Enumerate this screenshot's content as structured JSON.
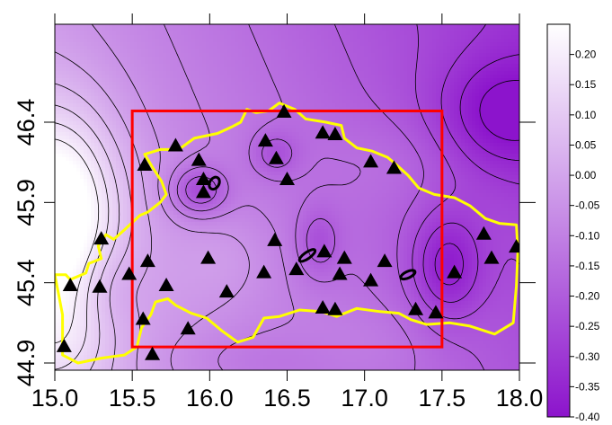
{
  "chart_data": {
    "type": "heatmap",
    "title": "",
    "xlabel": "",
    "ylabel": "",
    "xlim": [
      15.0,
      18.0
    ],
    "ylim": [
      44.9,
      46.55
    ],
    "x_ticks": [
      "15.0",
      "15.5",
      "16.0",
      "16.5",
      "17.0",
      "17.5",
      "18.0"
    ],
    "y_ticks": [
      "44.9",
      "45.4",
      "45.9",
      "46.4"
    ],
    "y_tick_values": [
      44.9,
      45.4,
      45.9,
      46.4
    ],
    "x_tick_values": [
      15.0,
      15.5,
      16.0,
      16.5,
      17.0,
      17.5,
      18.0
    ],
    "grid": false,
    "colorbar": {
      "labels": [
        "0.20",
        "0.15",
        "0.10",
        "0.05",
        "0.00",
        "-0.05",
        "-0.10",
        "-0.15",
        "-0.20",
        "-0.25",
        "-0.30",
        "-0.35",
        "-0.40"
      ],
      "values": [
        0.2,
        0.15,
        0.1,
        0.05,
        0.0,
        -0.05,
        -0.1,
        -0.15,
        -0.2,
        -0.25,
        -0.3,
        -0.35,
        -0.4
      ],
      "range": [
        -0.4,
        0.25
      ],
      "low_color": "#8c14cc",
      "high_color": "#ffffff",
      "placement": "right"
    },
    "study_area_rectangle": {
      "lon_min": 15.5,
      "lon_max": 17.5,
      "lat_min": 45.0,
      "lat_max": 46.47,
      "color": "#ff0000"
    },
    "border_color": "#ffff00",
    "contour_color": "#000000",
    "stations": [
      [
        16.48,
        46.47
      ],
      [
        15.78,
        46.26
      ],
      [
        16.36,
        46.29
      ],
      [
        16.73,
        46.34
      ],
      [
        16.81,
        46.33
      ],
      [
        15.58,
        46.14
      ],
      [
        15.93,
        46.17
      ],
      [
        16.43,
        46.18
      ],
      [
        17.04,
        46.16
      ],
      [
        17.19,
        46.12
      ],
      [
        15.96,
        46.05
      ],
      [
        15.96,
        45.97
      ],
      [
        16.5,
        46.05
      ],
      [
        15.3,
        45.68
      ],
      [
        16.42,
        45.67
      ],
      [
        17.77,
        45.71
      ],
      [
        17.98,
        45.63
      ],
      [
        15.48,
        45.46
      ],
      [
        15.1,
        45.39
      ],
      [
        15.29,
        45.38
      ],
      [
        15.6,
        45.54
      ],
      [
        15.99,
        45.56
      ],
      [
        15.72,
        45.39
      ],
      [
        16.11,
        45.35
      ],
      [
        16.35,
        45.47
      ],
      [
        16.56,
        45.49
      ],
      [
        16.74,
        45.6
      ],
      [
        16.87,
        45.56
      ],
      [
        16.84,
        45.46
      ],
      [
        17.13,
        45.54
      ],
      [
        17.04,
        45.42
      ],
      [
        17.58,
        45.47
      ],
      [
        17.82,
        45.56
      ],
      [
        15.57,
        45.18
      ],
      [
        15.86,
        45.12
      ],
      [
        16.73,
        45.25
      ],
      [
        16.81,
        45.24
      ],
      [
        17.33,
        45.24
      ],
      [
        17.46,
        45.22
      ],
      [
        15.06,
        45.01
      ],
      [
        15.63,
        44.96
      ]
    ],
    "field_model": {
      "base": -0.12,
      "gradient": {
        "x_center": 16.5,
        "y_center": 45.7,
        "dx": -0.09,
        "dy": -0.04
      },
      "gaussians": [
        {
          "lon": 15.0,
          "lat": 45.85,
          "amp": 0.34,
          "sx": 0.3,
          "sy": 0.45
        },
        {
          "lon": 15.05,
          "lat": 45.05,
          "amp": 0.1,
          "sx": 0.25,
          "sy": 0.25
        },
        {
          "lon": 15.93,
          "lat": 45.97,
          "amp": -0.17,
          "sx": 0.13,
          "sy": 0.11
        },
        {
          "lon": 16.42,
          "lat": 46.2,
          "amp": -0.1,
          "sx": 0.11,
          "sy": 0.1
        },
        {
          "lon": 16.7,
          "lat": 45.65,
          "amp": -0.1,
          "sx": 0.1,
          "sy": 0.15
        },
        {
          "lon": 17.53,
          "lat": 45.5,
          "amp": -0.17,
          "sx": 0.16,
          "sy": 0.23
        },
        {
          "lon": 17.9,
          "lat": 46.45,
          "amp": -0.16,
          "sx": 0.3,
          "sy": 0.25
        },
        {
          "lon": 15.35,
          "lat": 45.35,
          "amp": -0.06,
          "sx": 0.15,
          "sy": 0.2
        },
        {
          "lon": 16.3,
          "lat": 44.9,
          "amp": -0.06,
          "sx": 0.5,
          "sy": 0.15
        },
        {
          "lon": 16.1,
          "lat": 45.55,
          "amp": 0.05,
          "sx": 0.25,
          "sy": 0.2
        },
        {
          "lon": 17.2,
          "lat": 46.15,
          "amp": 0.04,
          "sx": 0.3,
          "sy": 0.2
        },
        {
          "lon": 17.0,
          "lat": 45.0,
          "amp": 0.04,
          "sx": 0.35,
          "sy": 0.18
        }
      ]
    },
    "small_loops": [
      {
        "lon": 16.63,
        "lat": 45.57,
        "rx": 0.06,
        "ry": 0.02,
        "rot": -35
      },
      {
        "lon": 17.28,
        "lat": 45.45,
        "rx": 0.05,
        "ry": 0.02,
        "rot": -25
      },
      {
        "lon": 16.03,
        "lat": 46.02,
        "rx": 0.03,
        "ry": 0.04,
        "rot": 30
      }
    ],
    "border_path": [
      [
        15.0,
        45.45
      ],
      [
        15.07,
        45.45
      ],
      [
        15.1,
        45.42
      ],
      [
        15.2,
        45.46
      ],
      [
        15.22,
        45.52
      ],
      [
        15.3,
        45.55
      ],
      [
        15.28,
        45.63
      ],
      [
        15.33,
        45.7
      ],
      [
        15.38,
        45.67
      ],
      [
        15.45,
        45.73
      ],
      [
        15.55,
        45.82
      ],
      [
        15.6,
        45.84
      ],
      [
        15.68,
        45.9
      ],
      [
        15.72,
        45.95
      ],
      [
        15.69,
        46.03
      ],
      [
        15.63,
        46.12
      ],
      [
        15.58,
        46.2
      ],
      [
        15.68,
        46.23
      ],
      [
        15.8,
        46.23
      ],
      [
        15.9,
        46.3
      ],
      [
        16.05,
        46.33
      ],
      [
        16.14,
        46.37
      ],
      [
        16.2,
        46.4
      ],
      [
        16.24,
        46.48
      ],
      [
        16.3,
        46.46
      ],
      [
        16.38,
        46.47
      ],
      [
        16.45,
        46.52
      ],
      [
        16.55,
        46.48
      ],
      [
        16.62,
        46.42
      ],
      [
        16.75,
        46.4
      ],
      [
        16.85,
        46.38
      ],
      [
        16.87,
        46.3
      ],
      [
        16.95,
        46.24
      ],
      [
        17.05,
        46.22
      ],
      [
        17.15,
        46.18
      ],
      [
        17.2,
        46.14
      ],
      [
        17.28,
        46.07
      ],
      [
        17.35,
        45.99
      ],
      [
        17.45,
        45.95
      ],
      [
        17.58,
        45.93
      ],
      [
        17.68,
        45.88
      ],
      [
        17.78,
        45.8
      ],
      [
        17.87,
        45.77
      ],
      [
        17.98,
        45.76
      ],
      [
        17.99,
        45.6
      ],
      [
        17.98,
        45.38
      ],
      [
        17.96,
        45.15
      ],
      [
        17.84,
        45.08
      ],
      [
        17.68,
        45.13
      ],
      [
        17.55,
        45.15
      ],
      [
        17.4,
        45.14
      ],
      [
        17.3,
        45.17
      ],
      [
        17.22,
        45.21
      ],
      [
        17.1,
        45.22
      ],
      [
        16.95,
        45.24
      ],
      [
        16.82,
        45.19
      ],
      [
        16.72,
        45.22
      ],
      [
        16.58,
        45.23
      ],
      [
        16.45,
        45.19
      ],
      [
        16.35,
        45.18
      ],
      [
        16.28,
        45.06
      ],
      [
        16.18,
        45.03
      ],
      [
        16.08,
        45.1
      ],
      [
        15.98,
        45.18
      ],
      [
        15.88,
        45.21
      ],
      [
        15.78,
        45.26
      ],
      [
        15.73,
        45.3
      ],
      [
        15.65,
        45.28
      ],
      [
        15.62,
        45.2
      ],
      [
        15.56,
        45.12
      ],
      [
        15.53,
        45.0
      ],
      [
        15.45,
        44.95
      ],
      [
        15.3,
        44.93
      ],
      [
        15.15,
        44.9
      ],
      [
        15.05,
        44.95
      ],
      [
        15.05,
        45.2
      ],
      [
        15.0,
        45.45
      ]
    ]
  }
}
